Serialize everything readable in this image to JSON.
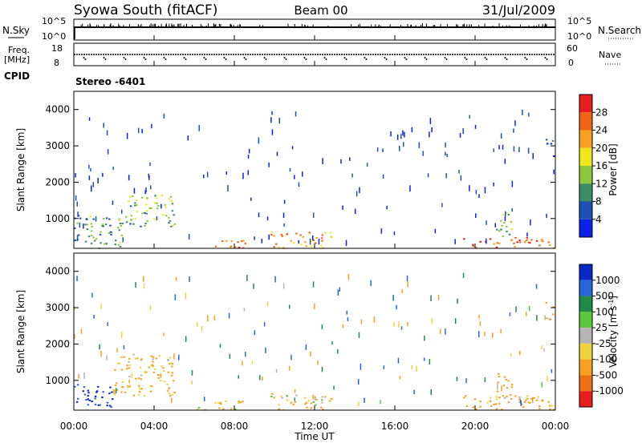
{
  "header": {
    "station": "Syowa South (fitACF)",
    "beam": "Beam 00",
    "date": "31/Jul/2009"
  },
  "panels": {
    "nsky": {
      "label": "N.Sky",
      "tick_high": "10^5",
      "tick_low": "10^0",
      "right_label": "N.Search",
      "right_tick_high": "10^5",
      "right_tick_low": "10^0"
    },
    "freq": {
      "label": "Freq.",
      "unit": "[MHz]",
      "tick_high": "18",
      "tick_low": "8",
      "right_label": "Nave",
      "right_tick_high": "60",
      "right_tick_low": "0"
    },
    "cpid": {
      "label": "CPID",
      "value": "Stereo -6401"
    }
  },
  "axes": {
    "ylabel": "Slant Range [km]",
    "xlabel": "Time UT",
    "yticks": [
      "1000",
      "2000",
      "3000",
      "4000"
    ],
    "xticks": [
      "00:00",
      "04:00",
      "08:00",
      "12:00",
      "16:00",
      "20:00",
      "00:00"
    ]
  },
  "colorbars": {
    "power": {
      "label": "Power [dB]",
      "ticks": [
        "4",
        "8",
        "12",
        "16",
        "20",
        "24",
        "28"
      ],
      "colors": [
        "#0a22e8",
        "#1e50b8",
        "#3c8c64",
        "#8cc83c",
        "#f0e61e",
        "#f5a01e",
        "#f06414",
        "#e81e1e"
      ]
    },
    "velocity": {
      "label": "Velocity [m s",
      "unit_sup": "-1",
      "unit_close": "]",
      "ticks": [
        "1000",
        "500",
        "100",
        "25",
        "-25",
        "-100",
        "-500",
        "-1000"
      ],
      "colors": [
        "#0a28c8",
        "#2864dc",
        "#1e8c46",
        "#5ac83c",
        "#b4b4b4",
        "#f0d23c",
        "#f5a01e",
        "#f06e14",
        "#e81e1e"
      ]
    }
  },
  "chart_data": {
    "type": "heatmap",
    "title": "Syowa South (fitACF) Beam 00 31/Jul/2009",
    "x": {
      "label": "Time UT",
      "range": [
        0,
        24
      ],
      "ticks": [
        "00:00",
        "04:00",
        "08:00",
        "12:00",
        "16:00",
        "20:00",
        "00:00"
      ]
    },
    "y": {
      "label": "Slant Range [km]",
      "range": [
        180,
        4500
      ],
      "ticks": [
        1000,
        2000,
        3000,
        4000
      ]
    },
    "power_panel": {
      "colorbar": "Power [dB]",
      "range": [
        3,
        30
      ],
      "regions": [
        {
          "t": [
            0.0,
            2.5
          ],
          "r": [
            200,
            1100
          ],
          "value": 12
        },
        {
          "t": [
            2.5,
            5.0
          ],
          "r": [
            800,
            1700
          ],
          "value": 14
        },
        {
          "t": [
            6.5,
            8.6
          ],
          "r": [
            200,
            450
          ],
          "value": 24
        },
        {
          "t": [
            9.8,
            12.9
          ],
          "r": [
            200,
            650
          ],
          "value": 22
        },
        {
          "t": [
            19.3,
            23.9
          ],
          "r": [
            200,
            500
          ],
          "value": 26
        },
        {
          "t": [
            21.0,
            21.8
          ],
          "r": [
            500,
            1250
          ],
          "value": 15
        },
        {
          "t": [
            23.5,
            23.9
          ],
          "r": [
            2700,
            3200
          ],
          "value": 8
        }
      ]
    },
    "velocity_panel": {
      "colorbar": "Velocity [m s-1]",
      "range": [
        -1000,
        1000
      ],
      "regions": [
        {
          "t": [
            0.0,
            2.0
          ],
          "r": [
            250,
            900
          ],
          "value": 500
        },
        {
          "t": [
            2.0,
            5.0
          ],
          "r": [
            600,
            1750
          ],
          "value": -150
        },
        {
          "t": [
            6.0,
            8.5
          ],
          "r": [
            200,
            450
          ],
          "value": -120
        },
        {
          "t": [
            9.8,
            12.9
          ],
          "r": [
            200,
            650
          ],
          "value": -100
        },
        {
          "t": [
            19.3,
            23.9
          ],
          "r": [
            200,
            600
          ],
          "value": -150
        },
        {
          "t": [
            21.0,
            21.8
          ],
          "r": [
            500,
            1250
          ],
          "value": -300
        },
        {
          "t": [
            23.5,
            23.9
          ],
          "r": [
            2700,
            3200
          ],
          "value": -400
        }
      ]
    }
  }
}
